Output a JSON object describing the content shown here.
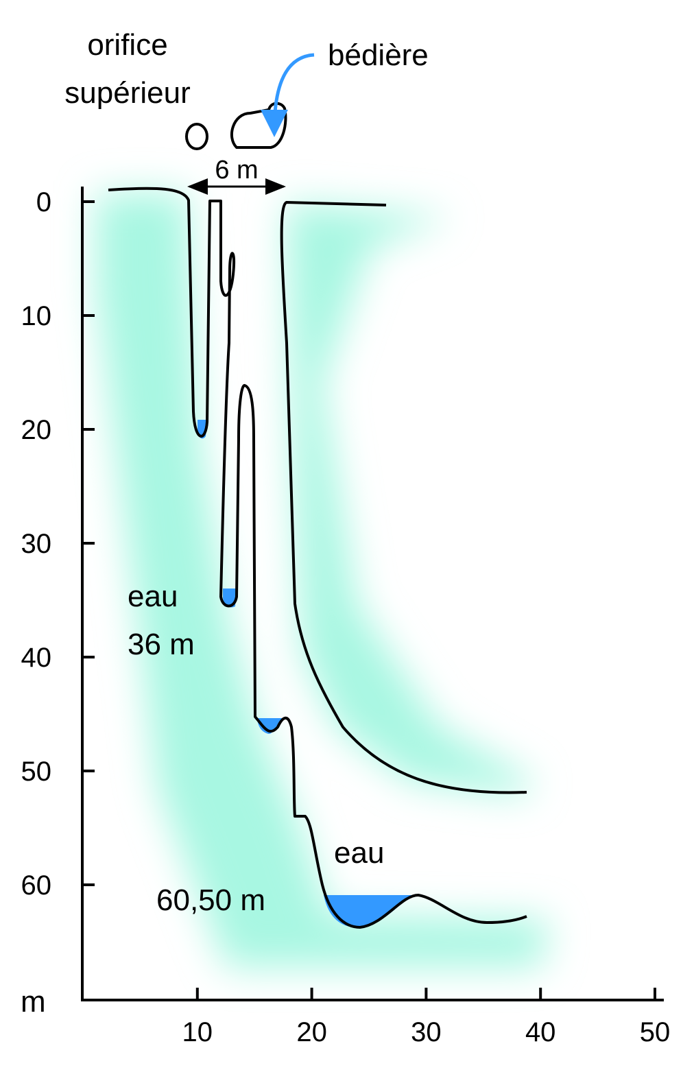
{
  "labels": {
    "orifice": [
      "orifice",
      "supérieur"
    ],
    "bediere": "bédière",
    "width": "6 m",
    "water_upper": [
      "eau",
      "36 m"
    ],
    "water_lower": [
      "eau",
      "60,50 m"
    ]
  },
  "axes": {
    "unit": "m",
    "xticks": [
      10,
      20,
      30,
      40,
      50
    ],
    "yticks": [
      0,
      10,
      20,
      30,
      40,
      50,
      60
    ]
  }
}
